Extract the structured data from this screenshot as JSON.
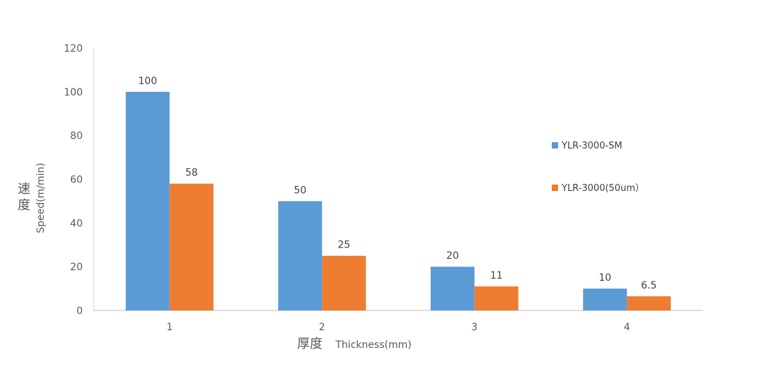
{
  "chart_data": {
    "type": "bar",
    "categories": [
      "1",
      "2",
      "3",
      "4"
    ],
    "series": [
      {
        "name": "YLR-3000-SM",
        "values": [
          100,
          50,
          20,
          10
        ],
        "labels": [
          "100",
          "50",
          "20",
          "10"
        ],
        "color": "#5B9BD5"
      },
      {
        "name": "YLR-3000(50um）",
        "values": [
          58,
          25,
          11,
          6.5
        ],
        "labels": [
          "58",
          "25",
          "11",
          "6.5"
        ],
        "color": "#ED7D31"
      }
    ],
    "yticks": [
      "0",
      "20",
      "40",
      "60",
      "80",
      "100",
      "120"
    ],
    "ylim": [
      0,
      120
    ],
    "xlabel": {
      "cjk": "厚度",
      "latin": "Thickness(mm)"
    },
    "ylabel": {
      "cjk1": "速",
      "cjk2": "度",
      "latin": "Speed(m/min)"
    },
    "legend_position": "right",
    "grid": false
  }
}
